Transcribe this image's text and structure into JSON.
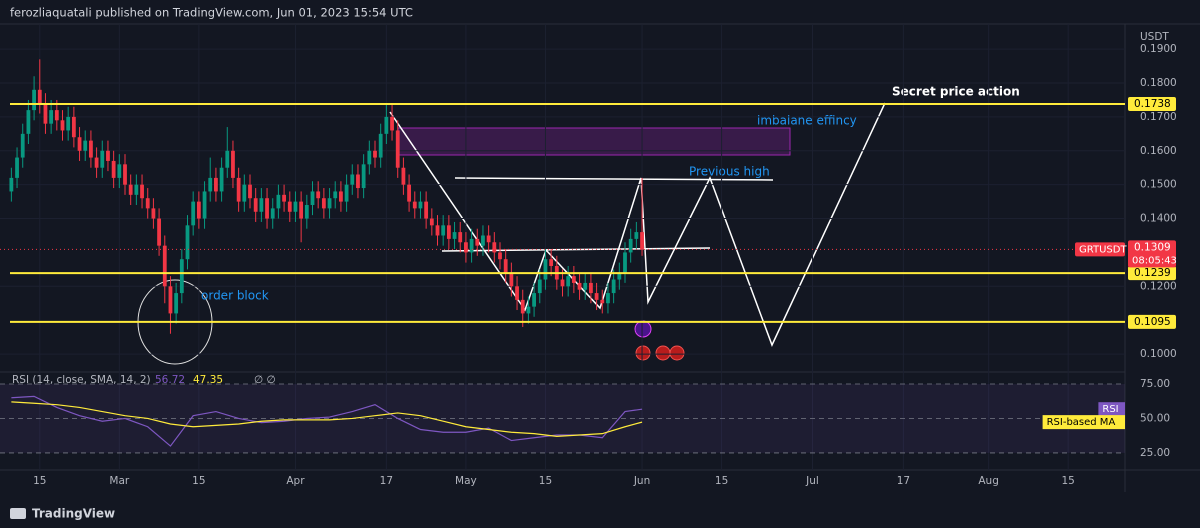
{
  "header": "ferozliaquatali published on TradingView.com, Jun 01, 2023 15:54 UTC",
  "brand": "TradingView",
  "chart_data": {
    "type": "candlestick",
    "title": "GRTUSDT",
    "currency": "USDT",
    "countdown": "08:05:43",
    "up_color": "#089981",
    "down_color": "#f23645",
    "last": 0.1309,
    "levels": [
      0.1738,
      0.1239,
      0.1095
    ],
    "level_color": "#ffeb3b",
    "annotations": [
      "Secret price action",
      "imbalane effincy",
      "Previous high",
      "order block"
    ],
    "ylim": [
      0.0953,
      0.1986
    ],
    "yticks": [
      {
        "value": 0.19,
        "label": "0.1900"
      },
      {
        "value": 0.18,
        "label": "0.1800"
      },
      {
        "value": 0.17,
        "label": "0.1700"
      },
      {
        "value": 0.16,
        "label": "0.1600"
      },
      {
        "value": 0.15,
        "label": "0.1500"
      },
      {
        "value": 0.14,
        "label": "0.1400"
      },
      {
        "value": 0.12,
        "label": "0.1200"
      },
      {
        "value": 0.1,
        "label": "0.1000"
      }
    ],
    "xlim": [
      "2023-02-08",
      "2023-08-25"
    ],
    "xticks": [
      {
        "value": "2023-02-15",
        "label": "15"
      },
      {
        "value": "2023-03-01",
        "label": "Mar"
      },
      {
        "value": "2023-03-15",
        "label": "15"
      },
      {
        "value": "2023-04-01",
        "label": "Apr"
      },
      {
        "value": "2023-04-17",
        "label": "17"
      },
      {
        "value": "2023-05-01",
        "label": "May"
      },
      {
        "value": "2023-05-15",
        "label": "15"
      },
      {
        "value": "2023-06-01",
        "label": "Jun"
      },
      {
        "value": "2023-06-15",
        "label": "15"
      },
      {
        "value": "2023-07-01",
        "label": "Jul"
      },
      {
        "value": "2023-07-17",
        "label": "17"
      },
      {
        "value": "2023-08-01",
        "label": "Aug"
      },
      {
        "value": "2023-08-15",
        "label": "15"
      }
    ],
    "x": [
      "2023-02-10",
      "2023-02-11",
      "2023-02-12",
      "2023-02-13",
      "2023-02-14",
      "2023-02-15",
      "2023-02-16",
      "2023-02-17",
      "2023-02-18",
      "2023-02-19",
      "2023-02-20",
      "2023-02-21",
      "2023-02-22",
      "2023-02-23",
      "2023-02-24",
      "2023-02-25",
      "2023-02-26",
      "2023-02-27",
      "2023-02-28",
      "2023-03-01",
      "2023-03-02",
      "2023-03-03",
      "2023-03-04",
      "2023-03-05",
      "2023-03-06",
      "2023-03-07",
      "2023-03-08",
      "2023-03-09",
      "2023-03-10",
      "2023-03-11",
      "2023-03-12",
      "2023-03-13",
      "2023-03-14",
      "2023-03-15",
      "2023-03-16",
      "2023-03-17",
      "2023-03-18",
      "2023-03-19",
      "2023-03-20",
      "2023-03-21",
      "2023-03-22",
      "2023-03-23",
      "2023-03-24",
      "2023-03-25",
      "2023-03-26",
      "2023-03-27",
      "2023-03-28",
      "2023-03-29",
      "2023-03-30",
      "2023-03-31",
      "2023-04-01",
      "2023-04-02",
      "2023-04-03",
      "2023-04-04",
      "2023-04-05",
      "2023-04-06",
      "2023-04-07",
      "2023-04-08",
      "2023-04-09",
      "2023-04-10",
      "2023-04-11",
      "2023-04-12",
      "2023-04-13",
      "2023-04-14",
      "2023-04-15",
      "2023-04-16",
      "2023-04-17",
      "2023-04-18",
      "2023-04-19",
      "2023-04-20",
      "2023-04-21",
      "2023-04-22",
      "2023-04-23",
      "2023-04-24",
      "2023-04-25",
      "2023-04-26",
      "2023-04-27",
      "2023-04-28",
      "2023-04-29",
      "2023-04-30",
      "2023-05-01",
      "2023-05-02",
      "2023-05-03",
      "2023-05-04",
      "2023-05-05",
      "2023-05-06",
      "2023-05-07",
      "2023-05-08",
      "2023-05-09",
      "2023-05-10",
      "2023-05-11",
      "2023-05-12",
      "2023-05-13",
      "2023-05-14",
      "2023-05-15",
      "2023-05-16",
      "2023-05-17",
      "2023-05-18",
      "2023-05-19",
      "2023-05-20",
      "2023-05-21",
      "2023-05-22",
      "2023-05-23",
      "2023-05-24",
      "2023-05-25",
      "2023-05-26",
      "2023-05-27",
      "2023-05-28",
      "2023-05-29",
      "2023-05-30",
      "2023-05-31",
      "2023-06-01"
    ],
    "ohlc": [
      [
        0.148,
        0.155,
        0.145,
        0.152
      ],
      [
        0.152,
        0.161,
        0.149,
        0.158
      ],
      [
        0.158,
        0.168,
        0.155,
        0.165
      ],
      [
        0.165,
        0.175,
        0.162,
        0.172
      ],
      [
        0.172,
        0.182,
        0.169,
        0.178
      ],
      [
        0.178,
        0.187,
        0.171,
        0.174
      ],
      [
        0.174,
        0.177,
        0.165,
        0.168
      ],
      [
        0.168,
        0.175,
        0.165,
        0.172
      ],
      [
        0.172,
        0.175,
        0.166,
        0.169
      ],
      [
        0.169,
        0.172,
        0.163,
        0.166
      ],
      [
        0.166,
        0.173,
        0.163,
        0.17
      ],
      [
        0.17,
        0.173,
        0.161,
        0.164
      ],
      [
        0.164,
        0.167,
        0.157,
        0.16
      ],
      [
        0.16,
        0.166,
        0.157,
        0.163
      ],
      [
        0.163,
        0.166,
        0.155,
        0.158
      ],
      [
        0.158,
        0.161,
        0.152,
        0.155
      ],
      [
        0.155,
        0.163,
        0.152,
        0.16
      ],
      [
        0.16,
        0.163,
        0.154,
        0.157
      ],
      [
        0.157,
        0.16,
        0.149,
        0.152
      ],
      [
        0.152,
        0.159,
        0.149,
        0.156
      ],
      [
        0.156,
        0.159,
        0.147,
        0.15
      ],
      [
        0.15,
        0.153,
        0.144,
        0.147
      ],
      [
        0.147,
        0.153,
        0.144,
        0.15
      ],
      [
        0.15,
        0.153,
        0.143,
        0.146
      ],
      [
        0.146,
        0.149,
        0.14,
        0.143
      ],
      [
        0.143,
        0.146,
        0.137,
        0.14
      ],
      [
        0.14,
        0.143,
        0.129,
        0.132
      ],
      [
        0.132,
        0.135,
        0.115,
        0.12
      ],
      [
        0.12,
        0.123,
        0.106,
        0.112
      ],
      [
        0.112,
        0.121,
        0.109,
        0.118
      ],
      [
        0.118,
        0.131,
        0.115,
        0.128
      ],
      [
        0.128,
        0.141,
        0.125,
        0.138
      ],
      [
        0.138,
        0.148,
        0.135,
        0.145
      ],
      [
        0.145,
        0.148,
        0.137,
        0.14
      ],
      [
        0.14,
        0.151,
        0.137,
        0.148
      ],
      [
        0.148,
        0.158,
        0.145,
        0.152
      ],
      [
        0.152,
        0.155,
        0.145,
        0.148
      ],
      [
        0.148,
        0.158,
        0.145,
        0.155
      ],
      [
        0.155,
        0.167,
        0.152,
        0.16
      ],
      [
        0.16,
        0.163,
        0.149,
        0.152
      ],
      [
        0.152,
        0.155,
        0.142,
        0.145
      ],
      [
        0.145,
        0.153,
        0.142,
        0.15
      ],
      [
        0.15,
        0.153,
        0.143,
        0.146
      ],
      [
        0.146,
        0.149,
        0.139,
        0.142
      ],
      [
        0.142,
        0.149,
        0.139,
        0.146
      ],
      [
        0.146,
        0.149,
        0.137,
        0.14
      ],
      [
        0.14,
        0.146,
        0.137,
        0.143
      ],
      [
        0.143,
        0.15,
        0.14,
        0.147
      ],
      [
        0.147,
        0.15,
        0.142,
        0.145
      ],
      [
        0.145,
        0.148,
        0.139,
        0.142
      ],
      [
        0.142,
        0.148,
        0.139,
        0.145
      ],
      [
        0.145,
        0.148,
        0.133,
        0.14
      ],
      [
        0.14,
        0.147,
        0.137,
        0.144
      ],
      [
        0.144,
        0.151,
        0.141,
        0.148
      ],
      [
        0.148,
        0.151,
        0.143,
        0.146
      ],
      [
        0.146,
        0.149,
        0.14,
        0.143
      ],
      [
        0.143,
        0.149,
        0.14,
        0.146
      ],
      [
        0.146,
        0.151,
        0.143,
        0.148
      ],
      [
        0.148,
        0.151,
        0.142,
        0.145
      ],
      [
        0.145,
        0.153,
        0.142,
        0.15
      ],
      [
        0.15,
        0.156,
        0.147,
        0.153
      ],
      [
        0.153,
        0.156,
        0.146,
        0.149
      ],
      [
        0.149,
        0.159,
        0.146,
        0.156
      ],
      [
        0.156,
        0.163,
        0.153,
        0.16
      ],
      [
        0.16,
        0.163,
        0.155,
        0.158
      ],
      [
        0.158,
        0.168,
        0.155,
        0.165
      ],
      [
        0.165,
        0.174,
        0.162,
        0.17
      ],
      [
        0.17,
        0.174,
        0.163,
        0.166
      ],
      [
        0.166,
        0.169,
        0.152,
        0.155
      ],
      [
        0.155,
        0.158,
        0.147,
        0.15
      ],
      [
        0.15,
        0.153,
        0.142,
        0.145
      ],
      [
        0.145,
        0.148,
        0.14,
        0.143
      ],
      [
        0.143,
        0.148,
        0.14,
        0.145
      ],
      [
        0.145,
        0.148,
        0.137,
        0.14
      ],
      [
        0.14,
        0.143,
        0.135,
        0.138
      ],
      [
        0.138,
        0.141,
        0.132,
        0.135
      ],
      [
        0.135,
        0.141,
        0.132,
        0.138
      ],
      [
        0.138,
        0.141,
        0.131,
        0.134
      ],
      [
        0.134,
        0.139,
        0.131,
        0.136
      ],
      [
        0.136,
        0.139,
        0.13,
        0.133
      ],
      [
        0.133,
        0.136,
        0.127,
        0.13
      ],
      [
        0.13,
        0.137,
        0.127,
        0.134
      ],
      [
        0.134,
        0.137,
        0.129,
        0.132
      ],
      [
        0.132,
        0.138,
        0.129,
        0.135
      ],
      [
        0.135,
        0.138,
        0.13,
        0.133
      ],
      [
        0.133,
        0.136,
        0.127,
        0.13
      ],
      [
        0.13,
        0.133,
        0.125,
        0.128
      ],
      [
        0.128,
        0.131,
        0.121,
        0.124
      ],
      [
        0.124,
        0.127,
        0.117,
        0.12
      ],
      [
        0.12,
        0.123,
        0.113,
        0.116
      ],
      [
        0.116,
        0.119,
        0.108,
        0.112
      ],
      [
        0.112,
        0.117,
        0.109,
        0.114
      ],
      [
        0.114,
        0.121,
        0.111,
        0.118
      ],
      [
        0.118,
        0.125,
        0.115,
        0.122
      ],
      [
        0.122,
        0.131,
        0.119,
        0.128
      ],
      [
        0.128,
        0.131,
        0.123,
        0.126
      ],
      [
        0.126,
        0.129,
        0.119,
        0.122
      ],
      [
        0.122,
        0.125,
        0.117,
        0.12
      ],
      [
        0.12,
        0.126,
        0.117,
        0.123
      ],
      [
        0.123,
        0.126,
        0.118,
        0.121
      ],
      [
        0.121,
        0.124,
        0.116,
        0.119
      ],
      [
        0.119,
        0.124,
        0.116,
        0.121
      ],
      [
        0.121,
        0.124,
        0.115,
        0.118
      ],
      [
        0.118,
        0.121,
        0.113,
        0.116
      ],
      [
        0.116,
        0.119,
        0.112,
        0.115
      ],
      [
        0.115,
        0.121,
        0.112,
        0.118
      ],
      [
        0.118,
        0.125,
        0.115,
        0.122
      ],
      [
        0.122,
        0.127,
        0.119,
        0.124
      ],
      [
        0.124,
        0.133,
        0.121,
        0.13
      ],
      [
        0.13,
        0.137,
        0.127,
        0.134
      ],
      [
        0.134,
        0.139,
        0.131,
        0.136
      ],
      [
        0.136,
        0.152,
        0.129,
        0.1309
      ]
    ],
    "rsi": {
      "type": "line",
      "title": "RSI (14, close, SMA, 14, 2)",
      "extra": "∅ ∅",
      "ylim": [
        14.1,
        81.5
      ],
      "yticks": [
        {
          "value": 75,
          "label": "75.00"
        },
        {
          "value": 50,
          "label": "50.00"
        },
        {
          "value": 25,
          "label": "25.00"
        }
      ],
      "x": [
        "2023-02-10",
        "2023-02-14",
        "2023-02-18",
        "2023-02-22",
        "2023-02-26",
        "2023-03-02",
        "2023-03-06",
        "2023-03-10",
        "2023-03-14",
        "2023-03-18",
        "2023-03-22",
        "2023-03-26",
        "2023-03-30",
        "2023-04-03",
        "2023-04-07",
        "2023-04-11",
        "2023-04-15",
        "2023-04-19",
        "2023-04-23",
        "2023-04-27",
        "2023-05-01",
        "2023-05-05",
        "2023-05-09",
        "2023-05-13",
        "2023-05-17",
        "2023-05-21",
        "2023-05-25",
        "2023-05-29",
        "2023-06-01"
      ],
      "series": [
        {
          "name": "RSI",
          "color": "#7e57c2",
          "values": [
            65,
            66,
            58,
            52,
            48,
            50,
            44,
            30,
            52,
            55,
            50,
            47,
            48,
            50,
            51,
            55,
            60,
            50,
            42,
            40,
            40,
            43,
            34,
            36,
            38,
            38,
            36,
            55,
            56.72
          ]
        },
        {
          "name": "RSI-based MA",
          "color": "#ffeb3b",
          "values": [
            62,
            61,
            60,
            58,
            55,
            52,
            50,
            46,
            44,
            45,
            46,
            48,
            49,
            49,
            49,
            50,
            52,
            54,
            52,
            48,
            44,
            42,
            40,
            39,
            37,
            38,
            39,
            44,
            47.35
          ]
        }
      ]
    }
  }
}
